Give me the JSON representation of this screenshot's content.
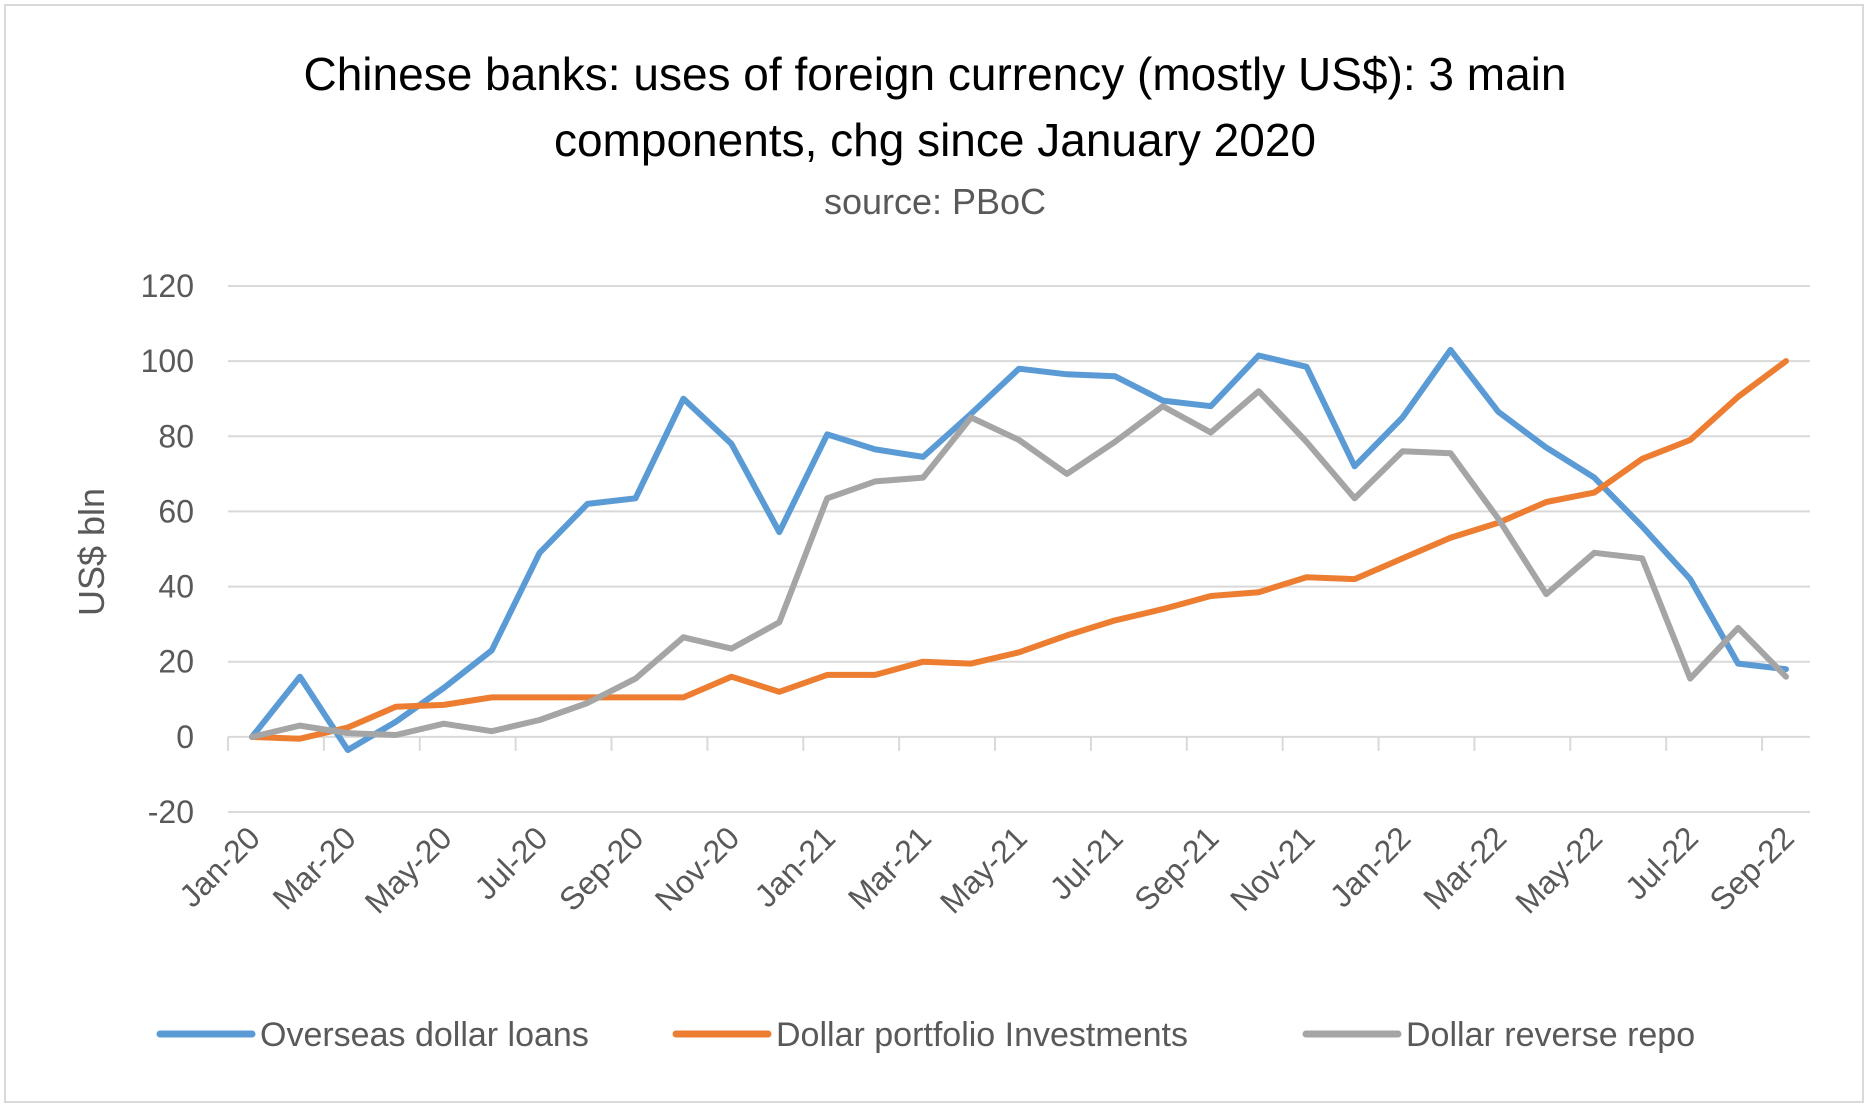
{
  "chart_data": {
    "type": "line",
    "title_lines": [
      "Chinese banks: uses of foreign currency (mostly US$): 3 main",
      "components, chg since January 2020"
    ],
    "subtitle": "source: PBoC",
    "ylabel": "US$ bln",
    "xlabel": "",
    "ylim": [
      -20,
      120
    ],
    "yticks": [
      "-20",
      "0",
      "20",
      "40",
      "60",
      "80",
      "100",
      "120"
    ],
    "x": [
      "Jan-20",
      "Feb-20",
      "Mar-20",
      "Apr-20",
      "May-20",
      "Jun-20",
      "Jul-20",
      "Aug-20",
      "Sep-20",
      "Oct-20",
      "Nov-20",
      "Dec-20",
      "Jan-21",
      "Feb-21",
      "Mar-21",
      "Apr-21",
      "May-21",
      "Jun-21",
      "Jul-21",
      "Aug-21",
      "Sep-21",
      "Oct-21",
      "Nov-21",
      "Dec-21",
      "Jan-22",
      "Feb-22",
      "Mar-22",
      "Apr-22",
      "May-22",
      "Jun-22",
      "Jul-22",
      "Aug-22",
      "Sep-22"
    ],
    "xtick_labels": [
      "Jan-20",
      "Mar-20",
      "May-20",
      "Jul-20",
      "Sep-20",
      "Nov-20",
      "Jan-21",
      "Mar-21",
      "May-21",
      "Jul-21",
      "Sep-21",
      "Nov-21",
      "Jan-22",
      "Mar-22",
      "May-22",
      "Jul-22",
      "Sep-22"
    ],
    "grid": true,
    "legend_position": "bottom",
    "series": [
      {
        "name": "Overseas dollar loans",
        "color": "#5b9bd5",
        "values": [
          0,
          16,
          -3.5,
          4,
          13,
          23,
          49,
          62,
          63.5,
          90,
          78,
          54.5,
          80.5,
          76.5,
          74.5,
          86,
          98,
          96.5,
          96,
          89.5,
          88,
          101.5,
          98.5,
          72,
          85,
          103,
          86.5,
          77,
          69,
          56,
          42,
          19.5,
          18
        ]
      },
      {
        "name": "Dollar portfolio Investments",
        "color": "#ed7d31",
        "values": [
          0,
          -0.5,
          2.5,
          8,
          8.5,
          10.5,
          10.5,
          10.5,
          10.5,
          10.5,
          16,
          12,
          16.5,
          16.5,
          20,
          19.5,
          22.5,
          27,
          31,
          34,
          37.5,
          38.5,
          42.5,
          42,
          47.5,
          53,
          57,
          62.5,
          65,
          74,
          79,
          90.5,
          100
        ]
      },
      {
        "name": "Dollar reverse repo",
        "color": "#a5a5a5",
        "values": [
          0,
          3,
          1,
          0.5,
          3.5,
          1.5,
          4.5,
          9,
          15.5,
          26.5,
          23.5,
          30.5,
          63.5,
          68,
          69,
          85,
          79,
          70,
          78.5,
          88,
          81,
          92,
          78.5,
          63.5,
          76,
          75.5,
          58,
          38,
          49,
          47.5,
          15.5,
          29,
          16
        ]
      }
    ]
  }
}
